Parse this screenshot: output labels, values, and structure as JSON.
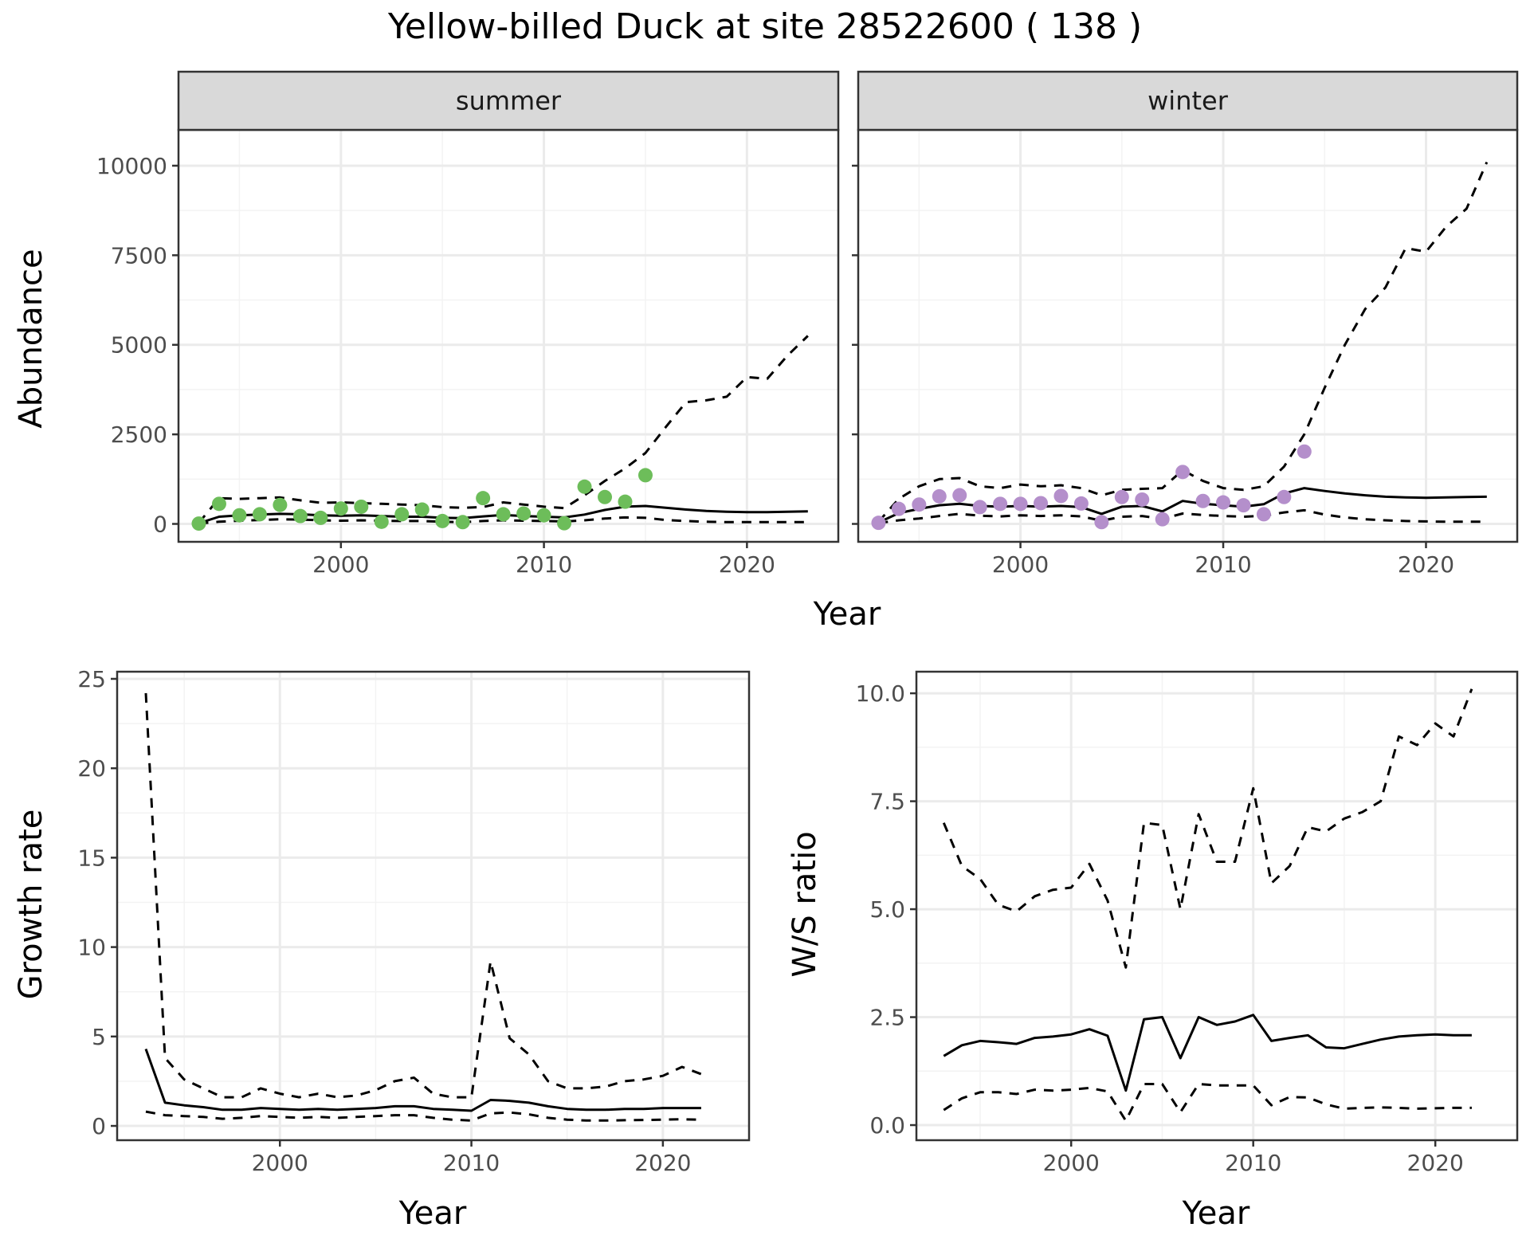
{
  "title": "Yellow-billed Duck at site 28522600 ( 138 )",
  "colors": {
    "summer_points": "#6dbd5a",
    "winter_points": "#b48fcb",
    "line": "#000000",
    "strip_fill": "#d9d9d9",
    "grid_major": "#ebebeb",
    "grid_minor": "#f3f3f3"
  },
  "chart_data": [
    {
      "type": "line",
      "panel": "summer",
      "strip_label": "summer",
      "xlabel": "Year",
      "ylabel": "Abundance",
      "xlim": [
        1992,
        2024.5
      ],
      "ylim": [
        -500,
        11000
      ],
      "x_ticks": [
        2000,
        2010,
        2020
      ],
      "y_ticks": [
        0,
        2500,
        5000,
        7500,
        10000
      ],
      "x_tick_labels": [
        "2000",
        "2010",
        "2020"
      ],
      "y_tick_labels": [
        "0",
        "2500",
        "5000",
        "7500",
        "10000"
      ],
      "x": [
        1993,
        1994,
        1995,
        1996,
        1997,
        1998,
        1999,
        2000,
        2001,
        2002,
        2003,
        2004,
        2005,
        2006,
        2007,
        2008,
        2009,
        2010,
        2011,
        2012,
        2013,
        2014,
        2015,
        2016,
        2017,
        2018,
        2019,
        2020,
        2021,
        2022,
        2023
      ],
      "series": [
        {
          "style": "dashed",
          "values": [
            30,
            720,
            700,
            720,
            740,
            660,
            590,
            600,
            580,
            560,
            540,
            520,
            470,
            450,
            470,
            600,
            540,
            480,
            440,
            800,
            1200,
            1550,
            1980,
            2700,
            3400,
            3450,
            3550,
            4100,
            4050,
            4700,
            5250
          ]
        },
        {
          "style": "solid",
          "values": [
            20,
            200,
            240,
            260,
            280,
            270,
            240,
            230,
            240,
            220,
            200,
            200,
            170,
            160,
            210,
            250,
            220,
            200,
            180,
            260,
            390,
            480,
            500,
            450,
            400,
            360,
            340,
            330,
            330,
            340,
            350
          ]
        },
        {
          "style": "dashed",
          "values": [
            10,
            60,
            90,
            110,
            130,
            120,
            100,
            90,
            100,
            90,
            80,
            80,
            60,
            50,
            80,
            100,
            90,
            80,
            70,
            100,
            150,
            180,
            170,
            110,
            80,
            60,
            50,
            50,
            50,
            50,
            50
          ]
        }
      ],
      "points": {
        "x": [
          1993,
          1994,
          1995,
          1996,
          1997,
          1998,
          1999,
          2000,
          2001,
          2002,
          2003,
          2004,
          2005,
          2006,
          2007,
          2008,
          2009,
          2010,
          2011,
          2012,
          2013,
          2014,
          2015
        ],
        "y": [
          10,
          560,
          240,
          270,
          530,
          220,
          170,
          430,
          480,
          60,
          270,
          400,
          80,
          50,
          720,
          270,
          290,
          240,
          20,
          1040,
          750,
          620,
          1360
        ]
      }
    },
    {
      "type": "line",
      "panel": "winter",
      "strip_label": "winter",
      "xlabel": "Year",
      "ylabel": "Abundance",
      "xlim": [
        1992,
        2024.5
      ],
      "ylim": [
        -500,
        11000
      ],
      "x_ticks": [
        2000,
        2010,
        2020
      ],
      "y_ticks": [
        0,
        2500,
        5000,
        7500,
        10000
      ],
      "x_tick_labels": [
        "2000",
        "2010",
        "2020"
      ],
      "y_tick_labels": [],
      "x": [
        1993,
        1994,
        1995,
        1996,
        1997,
        1998,
        1999,
        2000,
        2001,
        2002,
        2003,
        2004,
        2005,
        2006,
        2007,
        2008,
        2009,
        2010,
        2011,
        2012,
        2013,
        2014,
        2015,
        2016,
        2017,
        2018,
        2019,
        2020,
        2021,
        2022,
        2023
      ],
      "series": [
        {
          "style": "dashed",
          "values": [
            60,
            700,
            1050,
            1250,
            1280,
            1050,
            1000,
            1100,
            1050,
            1080,
            1000,
            800,
            950,
            980,
            1000,
            1500,
            1200,
            1000,
            950,
            1050,
            1600,
            2500,
            3800,
            5000,
            6000,
            6600,
            7700,
            7600,
            8300,
            8800,
            10100
          ]
        },
        {
          "style": "solid",
          "values": [
            40,
            300,
            420,
            520,
            560,
            500,
            480,
            500,
            480,
            500,
            470,
            280,
            480,
            500,
            350,
            640,
            560,
            520,
            480,
            550,
            850,
            1000,
            920,
            850,
            800,
            760,
            740,
            730,
            740,
            750,
            760
          ]
        },
        {
          "style": "dashed",
          "values": [
            20,
            100,
            150,
            220,
            280,
            230,
            210,
            240,
            220,
            240,
            210,
            90,
            200,
            220,
            140,
            290,
            250,
            220,
            200,
            230,
            320,
            380,
            260,
            180,
            130,
            100,
            80,
            70,
            60,
            60,
            60
          ]
        }
      ],
      "points": {
        "x": [
          1993,
          1994,
          1995,
          1996,
          1997,
          1998,
          1999,
          2000,
          2001,
          2002,
          2003,
          2004,
          2005,
          2006,
          2007,
          2008,
          2009,
          2010,
          2011,
          2012,
          2013,
          2014
        ],
        "y": [
          30,
          420,
          540,
          770,
          800,
          470,
          560,
          560,
          580,
          780,
          570,
          50,
          750,
          680,
          130,
          1450,
          640,
          600,
          520,
          270,
          750,
          2020
        ]
      }
    },
    {
      "type": "line",
      "panel": "growth",
      "xlabel": "Year",
      "ylabel": "Growth rate",
      "xlim": [
        1991.5,
        2024.5
      ],
      "ylim": [
        -0.8,
        25.4
      ],
      "x_ticks": [
        2000,
        2010,
        2020
      ],
      "y_ticks": [
        0,
        5,
        10,
        15,
        20,
        25
      ],
      "x_tick_labels": [
        "2000",
        "2010",
        "2020"
      ],
      "y_tick_labels": [
        "0",
        "5",
        "10",
        "15",
        "20",
        "25"
      ],
      "x": [
        1993,
        1994,
        1995,
        1996,
        1997,
        1998,
        1999,
        2000,
        2001,
        2002,
        2003,
        2004,
        2005,
        2006,
        2007,
        2008,
        2009,
        2010,
        2011,
        2012,
        2013,
        2014,
        2015,
        2016,
        2017,
        2018,
        2019,
        2020,
        2021,
        2022
      ],
      "series": [
        {
          "style": "dashed",
          "values": [
            24.2,
            3.8,
            2.6,
            2.1,
            1.6,
            1.6,
            2.1,
            1.8,
            1.6,
            1.8,
            1.6,
            1.7,
            2.0,
            2.5,
            2.7,
            1.8,
            1.6,
            1.6,
            9.2,
            4.9,
            4.0,
            2.5,
            2.1,
            2.1,
            2.2,
            2.5,
            2.6,
            2.8,
            3.3,
            2.9
          ]
        },
        {
          "style": "solid",
          "values": [
            4.3,
            1.3,
            1.15,
            1.05,
            0.9,
            0.9,
            1.0,
            0.95,
            0.9,
            0.95,
            0.9,
            0.95,
            1.0,
            1.1,
            1.1,
            0.95,
            0.9,
            0.85,
            1.45,
            1.4,
            1.3,
            1.1,
            0.95,
            0.9,
            0.9,
            0.95,
            0.95,
            1.0,
            1.0,
            1.0
          ]
        },
        {
          "style": "dashed",
          "values": [
            0.8,
            0.6,
            0.55,
            0.5,
            0.4,
            0.45,
            0.55,
            0.5,
            0.45,
            0.5,
            0.45,
            0.5,
            0.55,
            0.6,
            0.6,
            0.45,
            0.35,
            0.3,
            0.7,
            0.75,
            0.65,
            0.45,
            0.35,
            0.3,
            0.3,
            0.32,
            0.33,
            0.35,
            0.37,
            0.35
          ]
        }
      ]
    },
    {
      "type": "line",
      "panel": "ws_ratio",
      "xlabel": "Year",
      "ylabel": "W/S ratio",
      "xlim": [
        1991.5,
        2024.5
      ],
      "ylim": [
        -0.35,
        10.5
      ],
      "x_ticks": [
        2000,
        2010,
        2020
      ],
      "y_ticks": [
        0,
        2.5,
        5,
        7.5,
        10
      ],
      "x_tick_labels": [
        "2000",
        "2010",
        "2020"
      ],
      "y_tick_labels": [
        "0.0",
        "2.5",
        "5.0",
        "7.5",
        "10.0"
      ],
      "x": [
        1993,
        1994,
        1995,
        1996,
        1997,
        1998,
        1999,
        2000,
        2001,
        2002,
        2003,
        2004,
        2005,
        2006,
        2007,
        2008,
        2009,
        2010,
        2011,
        2012,
        2013,
        2014,
        2015,
        2016,
        2017,
        2018,
        2019,
        2020,
        2021,
        2022
      ],
      "series": [
        {
          "style": "dashed",
          "values": [
            7.0,
            6.0,
            5.7,
            5.1,
            4.95,
            5.3,
            5.45,
            5.5,
            6.05,
            5.2,
            3.65,
            7.0,
            6.95,
            5.0,
            7.2,
            6.1,
            6.1,
            7.8,
            5.6,
            6.0,
            6.9,
            6.8,
            7.1,
            7.25,
            7.5,
            9.0,
            8.8,
            9.3,
            9.0,
            10.1
          ]
        },
        {
          "style": "solid",
          "values": [
            1.6,
            1.85,
            1.95,
            1.92,
            1.88,
            2.02,
            2.05,
            2.1,
            2.22,
            2.07,
            0.8,
            2.45,
            2.5,
            1.55,
            2.5,
            2.32,
            2.4,
            2.55,
            1.95,
            2.02,
            2.08,
            1.8,
            1.78,
            1.88,
            1.98,
            2.05,
            2.08,
            2.1,
            2.08,
            2.08
          ]
        },
        {
          "style": "dashed",
          "values": [
            0.35,
            0.62,
            0.76,
            0.76,
            0.72,
            0.82,
            0.8,
            0.82,
            0.86,
            0.78,
            0.1,
            0.95,
            0.95,
            0.3,
            0.95,
            0.92,
            0.92,
            0.92,
            0.46,
            0.65,
            0.64,
            0.48,
            0.38,
            0.4,
            0.41,
            0.4,
            0.38,
            0.39,
            0.4,
            0.4
          ]
        }
      ]
    }
  ]
}
